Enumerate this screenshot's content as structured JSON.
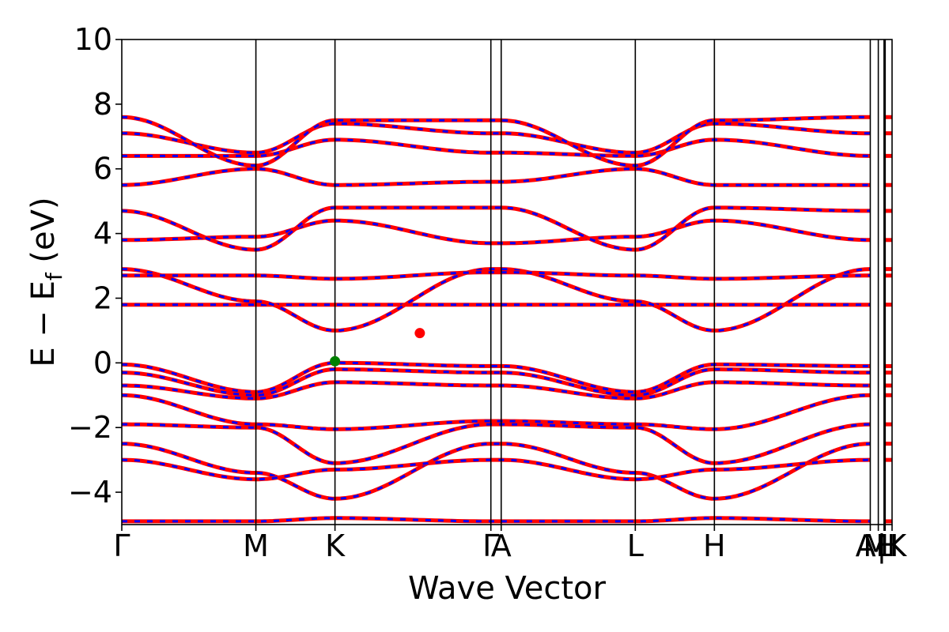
{
  "chart_data": {
    "type": "line",
    "title": "",
    "xlabel": "Wave Vector",
    "ylabel": {
      "prefix": "E − E",
      "subscript": "f",
      "suffix": " (eV)"
    },
    "ylim": [
      -5,
      10
    ],
    "yticks": [
      -4,
      -2,
      0,
      2,
      4,
      6,
      8,
      10
    ],
    "ytick_labels": [
      "−4",
      "−2",
      "0",
      "2",
      "4",
      "6",
      "8",
      "10"
    ],
    "xlim": [
      0,
      6.72
    ],
    "kpoints": [
      {
        "label": "Γ",
        "x": 0.0
      },
      {
        "label": "M",
        "x": 1.17
      },
      {
        "label": "K",
        "x": 1.86
      },
      {
        "label": "Γ",
        "x": 3.22
      },
      {
        "label": "A",
        "x": 3.31
      },
      {
        "label": "L",
        "x": 4.48
      },
      {
        "label": "H",
        "x": 5.17
      },
      {
        "label": "A",
        "x": 6.53
      },
      {
        "label": "L",
        "x": 6.6
      },
      {
        "label": "M",
        "x": 6.65
      },
      {
        "label": "H",
        "x": 6.66
      },
      {
        "label": "K",
        "x": 6.72
      }
    ],
    "tick_label_text": [
      "Γ",
      "M",
      "K",
      "Γ",
      "A",
      "L",
      "H",
      "A",
      "M",
      "|",
      "L",
      "H",
      "K"
    ],
    "grid": false,
    "legend": "none",
    "colors": {
      "band_solid": "#ff0000",
      "band_dashed": "#0000ff",
      "vbm_marker": "#008000",
      "cbm_marker": "#ff0000",
      "frame": "#000000"
    },
    "series": [
      {
        "values_at_kpoints": [
          -0.05,
          -0.9,
          0.0,
          -0.1,
          -0.1,
          -0.9,
          -0.05,
          -0.1
        ]
      },
      {
        "values_at_kpoints": [
          -0.3,
          -1.0,
          -0.2,
          -0.3,
          -0.3,
          -1.0,
          -0.2,
          -0.3
        ]
      },
      {
        "values_at_kpoints": [
          -0.7,
          -1.1,
          -0.6,
          -0.7,
          -0.7,
          -1.1,
          -0.6,
          -0.7
        ]
      },
      {
        "values_at_kpoints": [
          -1.0,
          -1.9,
          -2.05,
          -1.8,
          -1.8,
          -1.9,
          -2.05,
          -1.0
        ]
      },
      {
        "values_at_kpoints": [
          -1.9,
          -2.0,
          -3.1,
          -1.9,
          -1.9,
          -2.0,
          -3.1,
          -1.9
        ]
      },
      {
        "values_at_kpoints": [
          -2.5,
          -3.4,
          -4.2,
          -2.5,
          -2.5,
          -3.4,
          -4.2,
          -2.5
        ]
      },
      {
        "values_at_kpoints": [
          -3.0,
          -3.6,
          -3.3,
          -3.0,
          -3.0,
          -3.6,
          -3.3,
          -3.0
        ]
      },
      {
        "values_at_kpoints": [
          -4.9,
          -4.9,
          -4.8,
          -4.9,
          -4.9,
          -4.9,
          -4.8,
          -4.9
        ]
      },
      {
        "values_at_kpoints": [
          1.8,
          1.8,
          1.8,
          1.8,
          1.8,
          1.8,
          1.8,
          1.8
        ]
      },
      {
        "values_at_kpoints": [
          2.9,
          1.9,
          1.0,
          2.9,
          2.9,
          1.9,
          1.0,
          2.9
        ]
      },
      {
        "values_at_kpoints": [
          2.7,
          2.7,
          2.6,
          2.8,
          2.8,
          2.7,
          2.6,
          2.7
        ]
      },
      {
        "values_at_kpoints": [
          3.8,
          3.9,
          4.4,
          3.7,
          3.7,
          3.9,
          4.4,
          3.8
        ]
      },
      {
        "values_at_kpoints": [
          4.7,
          3.5,
          4.8,
          4.8,
          4.8,
          3.5,
          4.8,
          4.7
        ]
      },
      {
        "values_at_kpoints": [
          5.5,
          6.0,
          5.5,
          5.6,
          5.6,
          6.0,
          5.5,
          5.5
        ]
      },
      {
        "values_at_kpoints": [
          6.4,
          6.4,
          6.9,
          6.5,
          6.5,
          6.4,
          6.9,
          6.4
        ]
      },
      {
        "values_at_kpoints": [
          7.1,
          6.5,
          7.4,
          7.1,
          7.1,
          6.5,
          7.4,
          7.1
        ]
      },
      {
        "values_at_kpoints": [
          7.6,
          6.1,
          7.5,
          7.5,
          7.5,
          6.1,
          7.5,
          7.6
        ]
      }
    ],
    "extrema": [
      {
        "name": "VBM",
        "x": 1.86,
        "y": 0.05
      },
      {
        "name": "CBM",
        "x": 2.6,
        "y": 0.92
      }
    ]
  }
}
